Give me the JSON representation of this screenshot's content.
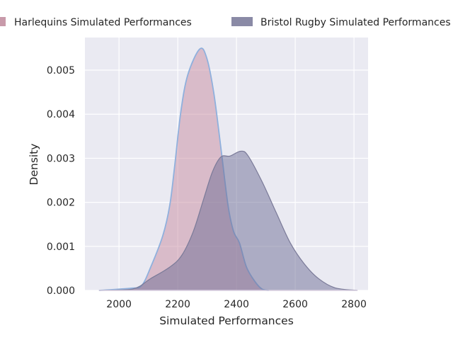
{
  "chart_data": {
    "type": "area",
    "title": "",
    "xlabel": "Simulated Performances",
    "ylabel": "Density",
    "xlim": [
      1884,
      2848
    ],
    "ylim": [
      0,
      0.00574
    ],
    "xticks": [
      2000,
      2200,
      2400,
      2600,
      2800
    ],
    "xtick_labels": [
      "2000",
      "2200",
      "2400",
      "2600",
      "2800"
    ],
    "yticks": [
      0,
      0.001,
      0.002,
      0.003,
      0.004,
      0.005
    ],
    "ytick_labels": [
      "0.000",
      "0.001",
      "0.002",
      "0.003",
      "0.004",
      "0.005"
    ],
    "grid": true,
    "legend_position": "top-center",
    "series": [
      {
        "name": "Harlequins Simulated Performances",
        "fill": "#c88ca0",
        "line": "#8fb0dd",
        "x": [
          1932,
          2041,
          2077,
          2108,
          2149,
          2173,
          2190,
          2210,
          2234,
          2275,
          2299,
          2323,
          2347,
          2371,
          2390,
          2410,
          2434,
          2463,
          2487,
          2510
        ],
        "y": [
          0,
          5e-05,
          0.00011,
          0.00053,
          0.00124,
          0.00194,
          0.00285,
          0.00403,
          0.00489,
          0.00548,
          0.00527,
          0.00447,
          0.00323,
          0.00194,
          0.00134,
          0.00108,
          0.00053,
          0.0002,
          3e-05,
          0
        ]
      },
      {
        "name": "Bristol Rugby Simulated Performances",
        "fill": "#6e6e96",
        "line": "#7a7a98",
        "x": [
          1932,
          2046,
          2108,
          2173,
          2214,
          2253,
          2287,
          2318,
          2347,
          2378,
          2414,
          2439,
          2487,
          2535,
          2583,
          2631,
          2679,
          2735,
          2812
        ],
        "y": [
          0,
          3e-05,
          0.00027,
          0.00053,
          0.0008,
          0.00134,
          0.00205,
          0.00269,
          0.00303,
          0.00305,
          0.00316,
          0.00306,
          0.00247,
          0.00177,
          0.00108,
          0.0006,
          0.00027,
          6e-05,
          0
        ]
      }
    ]
  }
}
